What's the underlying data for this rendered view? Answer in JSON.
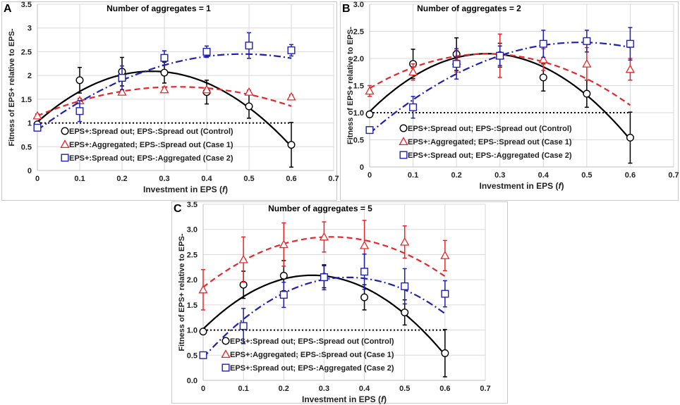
{
  "chart_data": [
    {
      "panel_label": "A",
      "type": "scatter",
      "title": "Number of aggregates = 1",
      "xlabel_prefix": "Investment in EPS (",
      "xlabel_var": "f",
      "xlabel_suffix": ")",
      "ylabel": "Fitness of EPS+ relative to EPS-",
      "xlim": [
        0,
        0.7
      ],
      "ylim": [
        0,
        3.5
      ],
      "xticks": [
        "0",
        "0.1",
        "0.2",
        "0.3",
        "0.4",
        "0.5",
        "0.6",
        "0.7"
      ],
      "yticks": [
        "0",
        "0.5",
        "1",
        "1.5",
        "2",
        "2.5",
        "3",
        "3.5"
      ],
      "x": [
        0,
        0.1,
        0.2,
        0.3,
        0.4,
        0.5,
        0.6
      ],
      "reference_line_y": 1.0,
      "series": [
        {
          "name": "EPS+:Spread out; EPS-:Spread out (Control)",
          "marker": "circle",
          "color": "#000000",
          "line_style": "solid",
          "values": [
            0.97,
            1.9,
            2.08,
            2.06,
            1.65,
            1.35,
            0.54
          ],
          "errors": [
            0.05,
            0.27,
            0.3,
            0.22,
            0.25,
            0.25,
            0.47
          ],
          "fit": [
            1.02,
            7.9,
            -14.6
          ]
        },
        {
          "name": "EPS+:Aggregated; EPS-:Spread out (Case 1)",
          "marker": "triangle",
          "color": "#e8262a",
          "line_style": "dashed",
          "values": [
            1.15,
            1.47,
            1.65,
            1.7,
            1.7,
            1.65,
            1.55
          ],
          "errors": [
            0.04,
            0.05,
            0.04,
            0.05,
            0.04,
            0.04,
            0.04
          ],
          "fit": [
            1.15,
            3.7,
            -5.6
          ]
        },
        {
          "name": "EPS+:Spread out; EPS-:Aggregated (Case 2)",
          "marker": "square",
          "color": "#1f1fb0",
          "line_style": "dashdot",
          "values": [
            0.9,
            1.25,
            1.95,
            2.37,
            2.5,
            2.63,
            2.53
          ],
          "errors": [
            0.06,
            0.22,
            0.25,
            0.15,
            0.12,
            0.27,
            0.12
          ],
          "fit": [
            0.85,
            6.6,
            -6.8
          ]
        }
      ]
    },
    {
      "panel_label": "B",
      "type": "scatter",
      "title": "Number of aggregates = 2",
      "xlabel_prefix": "Investment in EPS (",
      "xlabel_var": "f",
      "xlabel_suffix": ")",
      "ylabel": "Fitness of EPS+ relative to EPS-",
      "xlim": [
        0,
        0.7
      ],
      "ylim": [
        0,
        3.0
      ],
      "xticks": [
        "0",
        "0.1",
        "0.2",
        "0.3",
        "0.4",
        "0.5",
        "0.6",
        "0.7"
      ],
      "yticks": [
        "0",
        "0.5",
        "1.0",
        "1.5",
        "2.0",
        "2.5",
        "3.0"
      ],
      "x": [
        0,
        0.1,
        0.2,
        0.3,
        0.4,
        0.5,
        0.6
      ],
      "reference_line_y": 1.0,
      "series": [
        {
          "name": "EPS+:Spread out; EPS-:Spread out (Control)",
          "marker": "circle",
          "color": "#000000",
          "line_style": "solid",
          "values": [
            0.97,
            1.9,
            2.08,
            2.06,
            1.65,
            1.35,
            0.54
          ],
          "errors": [
            0.05,
            0.27,
            0.3,
            0.22,
            0.25,
            0.25,
            0.47
          ],
          "fit": [
            1.02,
            7.9,
            -14.6
          ]
        },
        {
          "name": "EPS+:Aggregated; EPS-:Spread out (Case 1)",
          "marker": "triangle",
          "color": "#e8262a",
          "line_style": "dashed",
          "values": [
            1.4,
            1.75,
            1.95,
            2.05,
            1.98,
            1.9,
            1.8
          ],
          "errors": [
            0.1,
            0.15,
            0.2,
            0.4,
            0.2,
            0.3,
            0.2
          ],
          "fit": [
            1.45,
            4.7,
            -8.7
          ]
        },
        {
          "name": "EPS+:Spread out; EPS-:Aggregated (Case 2)",
          "marker": "square",
          "color": "#1f1fb0",
          "line_style": "dashdot",
          "values": [
            0.68,
            1.1,
            1.9,
            2.05,
            2.27,
            2.32,
            2.27
          ],
          "errors": [
            0.06,
            0.2,
            0.28,
            0.18,
            0.25,
            0.2,
            0.3
          ],
          "fit": [
            0.62,
            6.9,
            -7.1
          ]
        }
      ]
    },
    {
      "panel_label": "C",
      "type": "scatter",
      "title": "Number of aggregates = 5",
      "xlabel_prefix": "Investment in EPS (",
      "xlabel_var": "f",
      "xlabel_suffix": ")",
      "ylabel": "Fitness of EPS+ relative to EPS-",
      "xlim": [
        0,
        0.7
      ],
      "ylim": [
        0,
        3.5
      ],
      "xticks": [
        "0",
        "0.1",
        "0.2",
        "0.3",
        "0.4",
        "0.5",
        "0.6",
        "0.7"
      ],
      "yticks": [
        "0.0",
        "0.5",
        "1.0",
        "1.5",
        "2.0",
        "2.5",
        "3.0",
        "3.5"
      ],
      "x": [
        0,
        0.1,
        0.2,
        0.3,
        0.4,
        0.5,
        0.6
      ],
      "reference_line_y": 1.0,
      "series": [
        {
          "name": "EPS+:Spread out; EPS-:Spread out (Control)",
          "marker": "circle",
          "color": "#000000",
          "line_style": "solid",
          "values": [
            0.97,
            1.9,
            2.08,
            2.06,
            1.65,
            1.35,
            0.54
          ],
          "errors": [
            0.05,
            0.27,
            0.3,
            0.22,
            0.25,
            0.25,
            0.47
          ],
          "fit": [
            1.02,
            7.9,
            -14.6
          ]
        },
        {
          "name": "EPS+:Aggregated; EPS-:Spread out (Case 1)",
          "marker": "triangle",
          "color": "#e8262a",
          "line_style": "dashed",
          "values": [
            1.8,
            2.4,
            2.7,
            2.85,
            2.68,
            2.75,
            2.48
          ],
          "errors": [
            0.4,
            0.45,
            0.43,
            0.3,
            0.5,
            0.32,
            0.3
          ],
          "fit": [
            1.85,
            6.3,
            -9.9
          ]
        },
        {
          "name": "EPS+:Spread out; EPS-:Aggregated (Case 2)",
          "marker": "square",
          "color": "#1f1fb0",
          "line_style": "dashdot",
          "values": [
            0.5,
            1.08,
            1.7,
            2.05,
            2.16,
            1.87,
            1.72
          ],
          "errors": [
            0.05,
            0.35,
            0.25,
            0.25,
            0.35,
            0.35,
            0.26
          ],
          "fit": [
            0.45,
            8.9,
            -12.4
          ]
        }
      ]
    }
  ]
}
